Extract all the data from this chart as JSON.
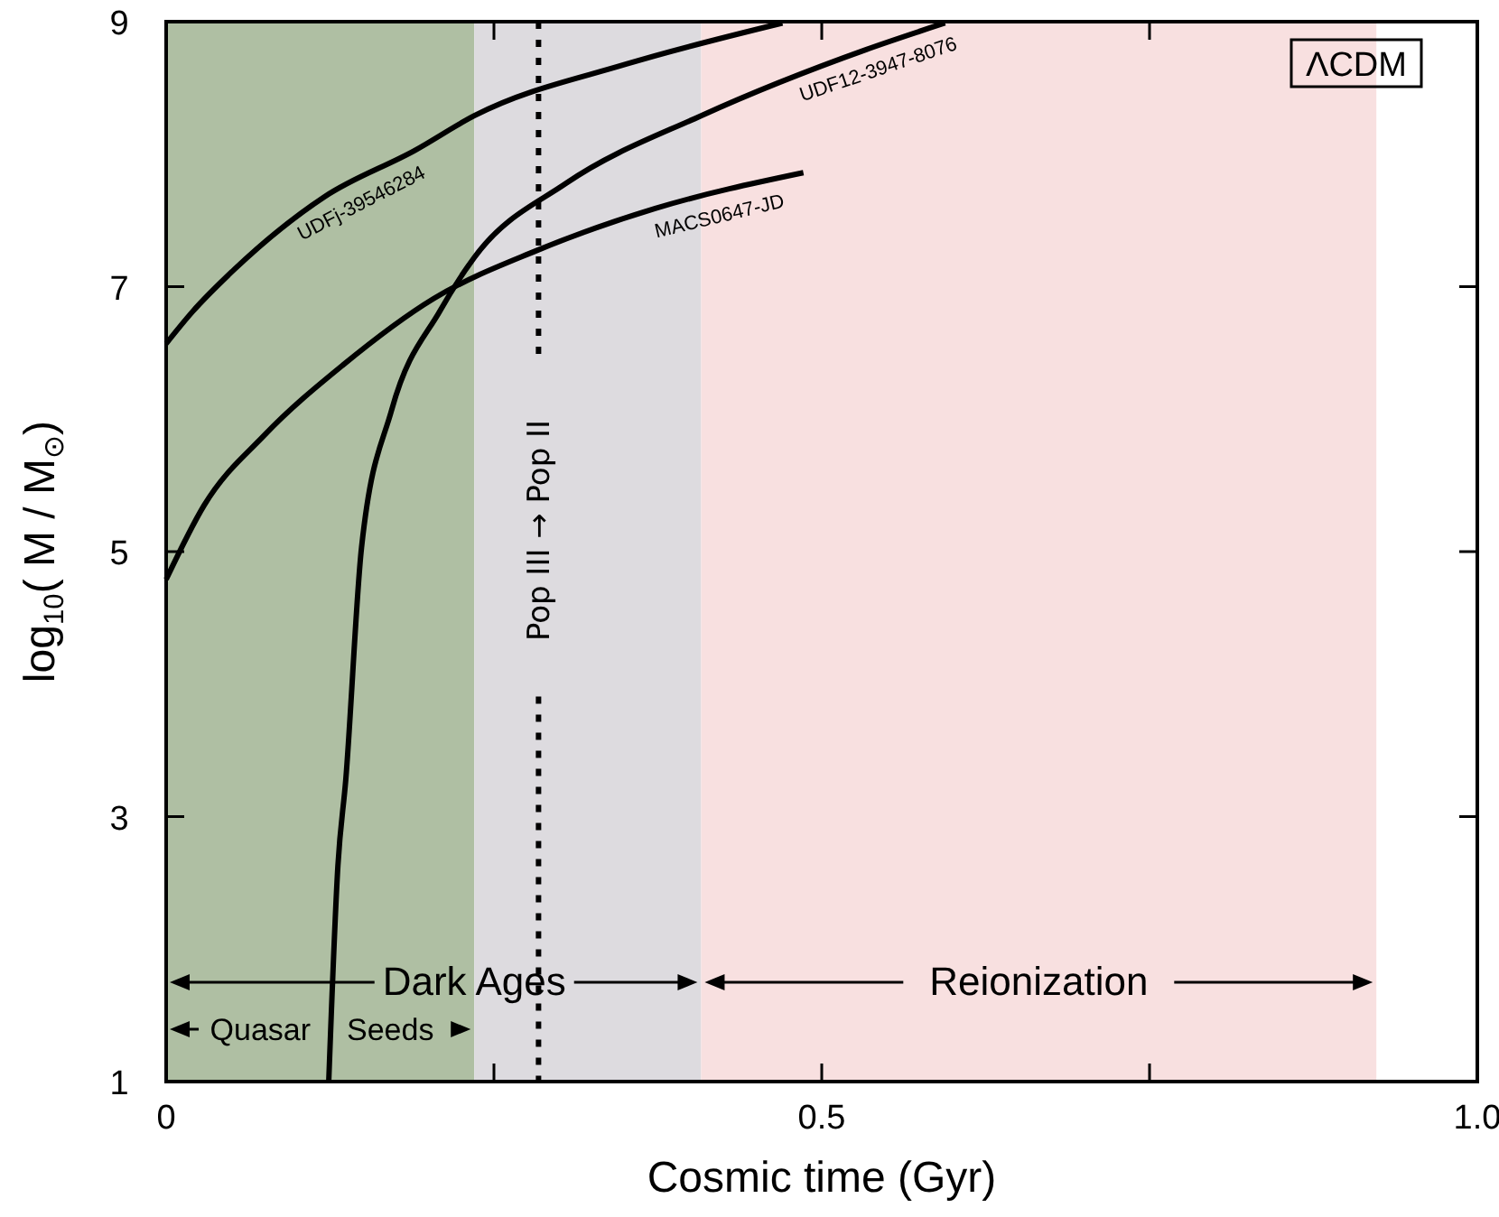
{
  "chart_data": {
    "type": "line",
    "xlabel": "Cosmic time (Gyr)",
    "ylabel": "log$_{10}$( M / M$_{⊙}$)",
    "xlim": [
      0,
      1.0
    ],
    "ylim": [
      1,
      9
    ],
    "xticks": [
      0,
      {
        "value": 0.25,
        "label": null
      },
      0.5,
      {
        "value": 0.75,
        "label": null
      },
      {
        "value": 1.0,
        "label": "1.0"
      }
    ],
    "yticks": [
      1,
      3,
      5,
      7,
      9
    ],
    "line_style": "solid",
    "series": [
      {
        "name": "UDFj-39546284",
        "color": "#000000",
        "x": [
          0,
          0.02,
          0.052,
          0.121,
          0.19,
          0.235,
          0.351,
          0.47
        ],
        "values": [
          6.57,
          6.81,
          7.13,
          7.68,
          8.03,
          8.29,
          8.68,
          8.99
        ]
      },
      {
        "name": "MACS0647-JD",
        "color": "#000000",
        "x": [
          0,
          0.029,
          0.075,
          0.135,
          0.204,
          0.282,
          0.373,
          0.486
        ],
        "values": [
          4.79,
          5.35,
          5.88,
          6.41,
          6.91,
          7.27,
          7.59,
          7.86
        ]
      },
      {
        "name": "UDF12-3947-8076",
        "color": "#000000",
        "x": [
          0.124,
          0.131,
          0.137,
          0.149,
          0.172,
          0.209,
          0.235,
          0.305,
          0.408,
          0.534,
          0.594
        ],
        "values": [
          1,
          2.63,
          3.28,
          5.03,
          6.07,
          6.82,
          7.22,
          7.78,
          8.29,
          8.79,
          8.99
        ]
      }
    ],
    "bands": [
      {
        "axis": "x",
        "from": 0,
        "to": 0.235,
        "label": "Quasar Seeds",
        "color": "#afbfa3"
      },
      {
        "axis": "x",
        "from": 0.235,
        "to": 0.408,
        "label": null,
        "color": "#dddbdf"
      },
      {
        "axis": "x",
        "from": 0.408,
        "to": 0.923,
        "label": "Reionization",
        "color": "#f8e0e0"
      }
    ],
    "ref_lines": [
      {
        "axis": "x",
        "value": 0.284,
        "label": "Pop III → Pop II",
        "line_style": "dashed",
        "color": "#000000"
      }
    ],
    "annotations": [
      "ΛCDM",
      {
        "text": "Dark Ages",
        "x": 0.235,
        "y": 1.75
      }
    ]
  }
}
